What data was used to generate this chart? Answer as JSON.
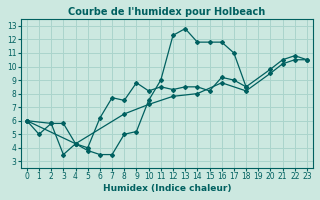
{
  "title": "Courbe de l'humidex pour Holbeach",
  "xlabel": "Humidex (Indice chaleur)",
  "xlim": [
    -0.5,
    23.5
  ],
  "ylim": [
    2.5,
    13.5
  ],
  "xticks": [
    0,
    1,
    2,
    3,
    4,
    5,
    6,
    7,
    8,
    9,
    10,
    11,
    12,
    13,
    14,
    15,
    16,
    17,
    18,
    19,
    20,
    21,
    22,
    23
  ],
  "yticks": [
    3,
    4,
    5,
    6,
    7,
    8,
    9,
    10,
    11,
    12,
    13
  ],
  "bg_color": "#cce8e0",
  "line_color": "#006060",
  "grid_color": "#aad4cc",
  "title_fontsize": 7.0,
  "xlabel_fontsize": 6.5,
  "tick_fontsize": 5.5,
  "line1_x": [
    0,
    1,
    2,
    3,
    4,
    5,
    6,
    7,
    8,
    9,
    10,
    11,
    12,
    13,
    14,
    15,
    16,
    17,
    18
  ],
  "line1_y": [
    6.0,
    5.0,
    5.8,
    3.5,
    4.3,
    3.8,
    3.5,
    3.5,
    5.0,
    5.2,
    7.5,
    9.0,
    12.3,
    12.8,
    11.8,
    11.8,
    11.8,
    11.0,
    8.5
  ],
  "line2_x": [
    0,
    2,
    3,
    4,
    5,
    6,
    7,
    8,
    9,
    10,
    11,
    12,
    13,
    14,
    15,
    16,
    17,
    18,
    20,
    21,
    22,
    23
  ],
  "line2_y": [
    6.0,
    5.8,
    5.8,
    4.3,
    4.0,
    6.2,
    7.7,
    7.5,
    8.8,
    8.2,
    8.5,
    8.3,
    8.5,
    8.5,
    8.2,
    9.2,
    9.0,
    8.5,
    9.8,
    10.5,
    10.8,
    10.5
  ],
  "line3_x": [
    0,
    4,
    8,
    10,
    12,
    14,
    16,
    18,
    20,
    21,
    22,
    23
  ],
  "line3_y": [
    6.0,
    4.3,
    6.5,
    7.2,
    7.8,
    8.0,
    8.8,
    8.2,
    9.5,
    10.2,
    10.5,
    10.5
  ]
}
